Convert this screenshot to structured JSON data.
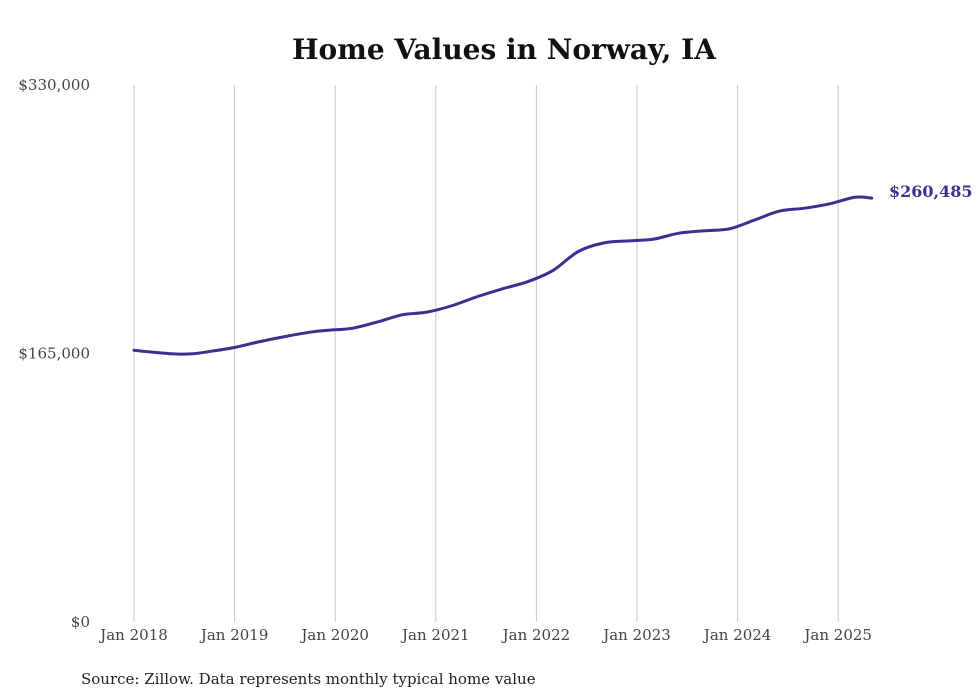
{
  "colors": {
    "line": "#3d2f8f",
    "grid": "#c8c8c8",
    "text": "#444444"
  },
  "source_note": "Source: Zillow. Data represents monthly typical home value",
  "chart_data": {
    "type": "line",
    "title": "Home Values in Norway, IA",
    "xlabel": "",
    "ylabel": "",
    "ylim": [
      0,
      330000
    ],
    "y_ticks": [
      {
        "value": 0,
        "label": "$0"
      },
      {
        "value": 165000,
        "label": "$165,000"
      },
      {
        "value": 330000,
        "label": "$330,000"
      }
    ],
    "x_ticks": [
      {
        "value": "2018-01",
        "label": "Jan 2018"
      },
      {
        "value": "2019-01",
        "label": "Jan 2019"
      },
      {
        "value": "2020-01",
        "label": "Jan 2020"
      },
      {
        "value": "2021-01",
        "label": "Jan 2021"
      },
      {
        "value": "2022-01",
        "label": "Jan 2022"
      },
      {
        "value": "2023-01",
        "label": "Jan 2023"
      },
      {
        "value": "2024-01",
        "label": "Jan 2024"
      },
      {
        "value": "2025-01",
        "label": "Jan 2025"
      }
    ],
    "grid": "vertical",
    "end_label": "$260,485",
    "series": [
      {
        "x": [
          "2018-01",
          "2018-04",
          "2018-06",
          "2018-08",
          "2018-10",
          "2019-01",
          "2019-04",
          "2019-07",
          "2019-10",
          "2019-12",
          "2020-03",
          "2020-06",
          "2020-09",
          "2020-12",
          "2021-03",
          "2021-06",
          "2021-09",
          "2021-12",
          "2022-03",
          "2022-06",
          "2022-09",
          "2022-12",
          "2023-03",
          "2023-06",
          "2023-09",
          "2023-12",
          "2024-03",
          "2024-06",
          "2024-09",
          "2024-12",
          "2025-03",
          "2025-05"
        ],
        "values": [
          167000,
          165500,
          164700,
          164800,
          166200,
          168700,
          172300,
          175400,
          178100,
          179200,
          180500,
          184300,
          188800,
          190500,
          194500,
          200000,
          204800,
          209200,
          216100,
          227700,
          232900,
          234200,
          235300,
          238900,
          240400,
          241600,
          247000,
          252500,
          254300,
          257000,
          261000,
          260485
        ]
      }
    ]
  }
}
